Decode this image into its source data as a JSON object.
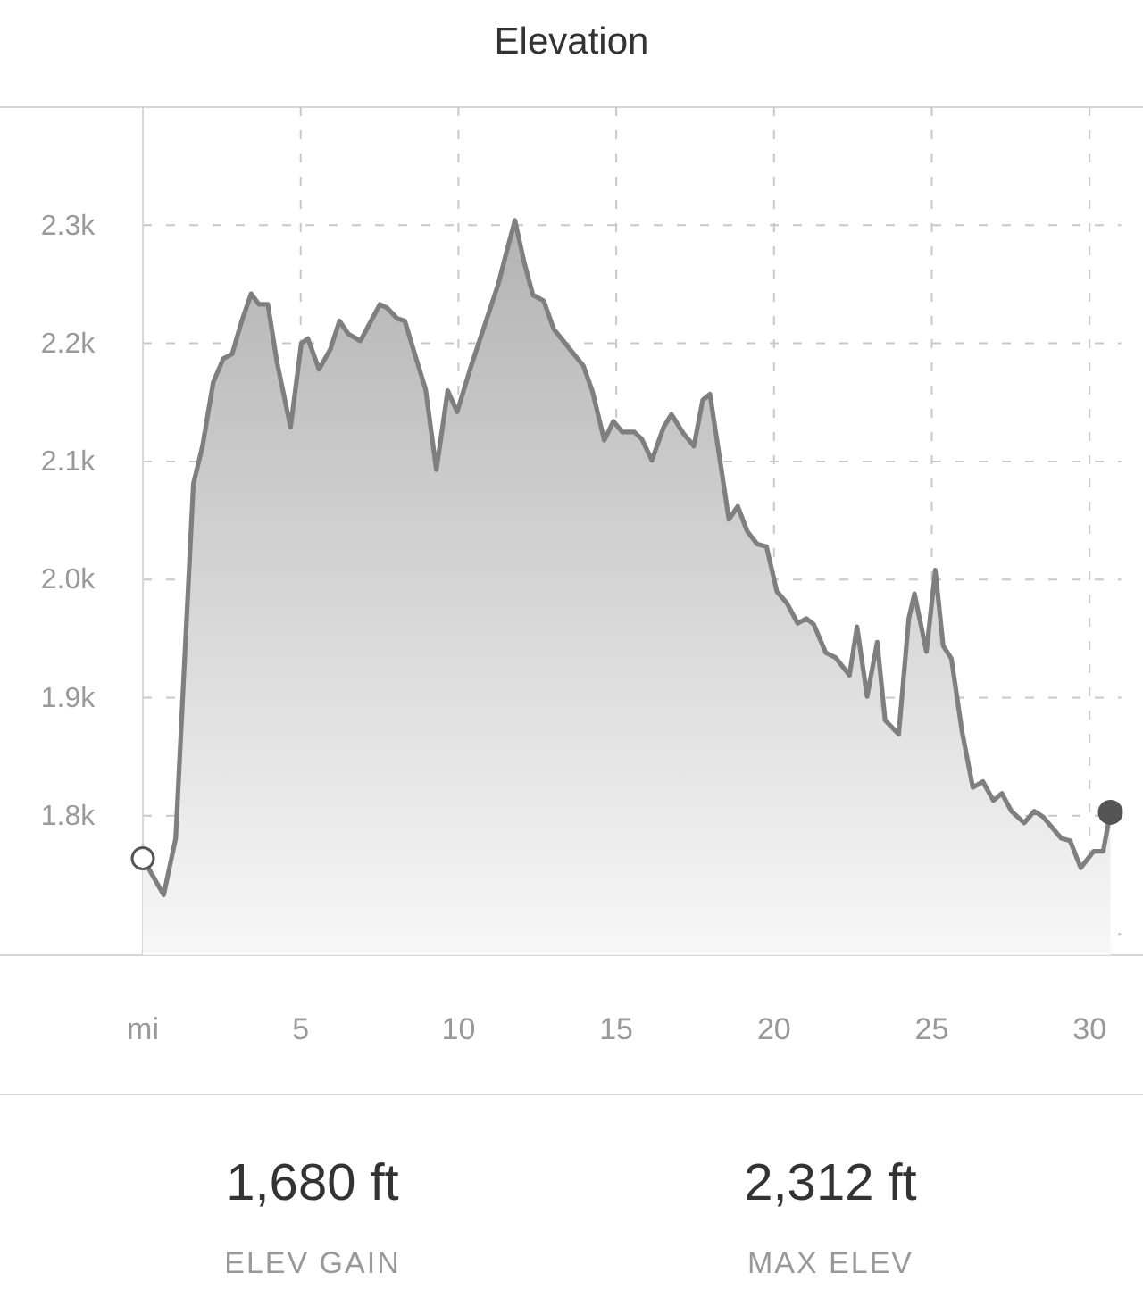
{
  "chart_data": {
    "type": "area",
    "title": "Elevation",
    "color": "#7f7f7f",
    "grid": true,
    "line_style": "solid",
    "xlim": [
      0,
      31
    ],
    "ylim": [
      1682,
      2400
    ],
    "xticks": [
      {
        "value": 0,
        "label": "mi"
      },
      5,
      10,
      15,
      20,
      25,
      30
    ],
    "yticks": [
      {
        "value": 1700,
        "label": null
      },
      {
        "value": 1800,
        "label": "1.8k"
      },
      {
        "value": 1900,
        "label": "1.9k"
      },
      {
        "value": 2000,
        "label": "2.0k"
      },
      {
        "value": 2100,
        "label": "2.1k"
      },
      {
        "value": 2200,
        "label": "2.2k"
      },
      {
        "value": 2300,
        "label": "2.3k"
      }
    ],
    "x": [
      0,
      0.66,
      1.04,
      1.6,
      1.89,
      2.23,
      2.55,
      2.83,
      3.11,
      3.43,
      3.68,
      3.96,
      4.25,
      4.68,
      5.02,
      5.23,
      5.58,
      5.94,
      6.23,
      6.51,
      6.89,
      7.51,
      7.74,
      8.06,
      8.3,
      8.58,
      8.96,
      9.3,
      9.66,
      9.96,
      10.38,
      11.26,
      11.55,
      11.79,
      12.08,
      12.36,
      12.7,
      13.02,
      13.96,
      14.25,
      14.62,
      14.91,
      15.19,
      15.57,
      15.81,
      16.13,
      16.5,
      16.75,
      17.12,
      17.46,
      17.74,
      17.97,
      18.57,
      18.85,
      19.15,
      19.47,
      19.76,
      20.09,
      20.41,
      20.75,
      21.03,
      21.26,
      21.64,
      21.95,
      22.39,
      22.63,
      22.95,
      23.27,
      23.52,
      23.95,
      24.27,
      24.45,
      24.83,
      25.11,
      25.36,
      25.62,
      25.96,
      26.3,
      26.62,
      26.95,
      27.22,
      27.52,
      27.93,
      28.25,
      28.53,
      29.1,
      29.38,
      29.72,
      30.13,
      30.43,
      30.66
    ],
    "values": [
      1764,
      1733,
      1781,
      2081,
      2113,
      2167,
      2187,
      2191,
      2217,
      2242,
      2233,
      2233,
      2184,
      2129,
      2200,
      2204,
      2178,
      2195,
      2219,
      2208,
      2202,
      2233,
      2230,
      2221,
      2219,
      2194,
      2161,
      2093,
      2160,
      2142,
      2179,
      2250,
      2280,
      2304,
      2269,
      2241,
      2236,
      2212,
      2181,
      2159,
      2118,
      2134,
      2125,
      2125,
      2119,
      2101,
      2129,
      2140,
      2124,
      2113,
      2152,
      2157,
      2051,
      2062,
      2041,
      2030,
      2028,
      1990,
      1980,
      1963,
      1967,
      1962,
      1938,
      1934,
      1919,
      1960,
      1901,
      1947,
      1881,
      1869,
      1967,
      1988,
      1939,
      2008,
      1944,
      1933,
      1871,
      1824,
      1829,
      1813,
      1819,
      1804,
      1794,
      1804,
      1799,
      1781,
      1779,
      1756,
      1770,
      1770,
      1803
    ],
    "annotations": [
      "1,680 ft",
      "ELEV GAIN",
      "2,312 ft",
      "MAX ELEV"
    ]
  }
}
